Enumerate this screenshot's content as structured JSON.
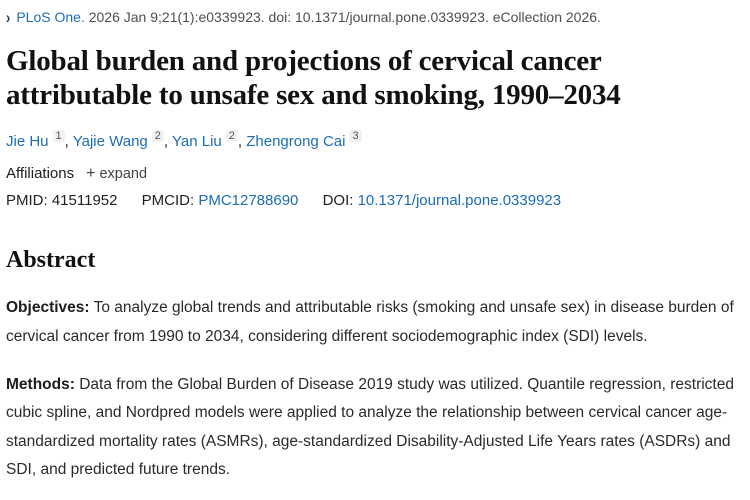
{
  "colors": {
    "link_blue": "#1b6db4",
    "chevron_navy": "#16365c",
    "body_text": "#212121",
    "muted_gray": "#4e4e4e",
    "badge_bg": "#f1f1f1"
  },
  "citation": {
    "chevron_icon": "›",
    "journal": "PLoS One.",
    "details": "2026 Jan 9;21(1):e0339923. doi: 10.1371/journal.pone.0339923. eCollection 2026."
  },
  "title": "Global burden and projections of cervical cancer attributable to unsafe sex and smoking, 1990–2034",
  "authors": [
    {
      "name": "Jie Hu",
      "sup": "1"
    },
    {
      "name": "Yajie Wang",
      "sup": "2"
    },
    {
      "name": "Yan Liu",
      "sup": "2"
    },
    {
      "name": "Zhengrong Cai",
      "sup": "3"
    }
  ],
  "authors_separator": ", ",
  "affiliations": {
    "label": "Affiliations",
    "expand_plus": "+",
    "expand_label": "expand"
  },
  "identifiers": {
    "pmid_label": "PMID:",
    "pmid_value": "41511952",
    "pmcid_label": "PMCID:",
    "pmcid_value": "PMC12788690",
    "doi_label": "DOI:",
    "doi_value": "10.1371/journal.pone.0339923"
  },
  "abstract": {
    "heading": "Abstract",
    "sections": [
      {
        "label": "Objectives:",
        "text": "To analyze global trends and attributable risks (smoking and unsafe sex) in disease burden of cervical cancer from 1990 to 2034, considering different sociodemographic index (SDI) levels."
      },
      {
        "label": "Methods:",
        "text": "Data from the Global Burden of Disease 2019 study was utilized. Quantile regression, restricted cubic spline, and Nordpred models were applied to analyze the relationship between cervical cancer age-standardized mortality rates (ASMRs), age-standardized Disability-Adjusted Life Years rates (ASDRs) and SDI, and predicted future trends."
      }
    ]
  }
}
